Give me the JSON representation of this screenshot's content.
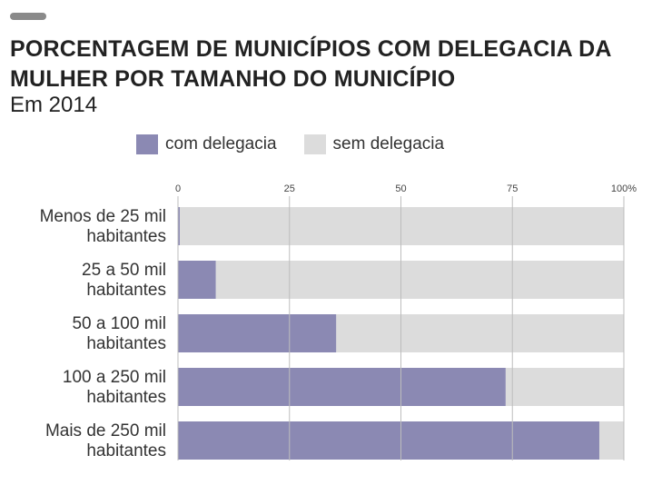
{
  "header": {
    "title": "PORCENTAGEM DE MUNICÍPIOS COM DELEGACIA DA MULHER POR TAMANHO DO MUNICÍPIO",
    "subtitle": "Em 2014"
  },
  "colors": {
    "com": "#8b89b3",
    "sem": "#dcdcdc",
    "grid": "#bdbdbd"
  },
  "chart_data": {
    "type": "bar",
    "orientation": "horizontal",
    "stacked": true,
    "categories": [
      [
        "Menos de 25 mil",
        "habitantes"
      ],
      [
        "25 a 50 mil",
        "habitantes"
      ],
      [
        "50 a 100 mil",
        "habitantes"
      ],
      [
        "100 a 250 mil",
        "habitantes"
      ],
      [
        "Mais de 250 mil",
        "habitantes"
      ]
    ],
    "series": [
      {
        "name": "com delegacia",
        "values": [
          0.4,
          8.5,
          35.5,
          73.5,
          94.5
        ]
      },
      {
        "name": "sem delegacia",
        "values": [
          99.6,
          91.5,
          64.5,
          26.5,
          5.5
        ]
      }
    ],
    "xlim": [
      0,
      100
    ],
    "xticks": [
      "0",
      "25",
      "50",
      "75",
      "100%"
    ],
    "xtick_values": [
      0,
      25,
      50,
      75,
      100
    ],
    "grid": true,
    "legend_position": "top"
  }
}
